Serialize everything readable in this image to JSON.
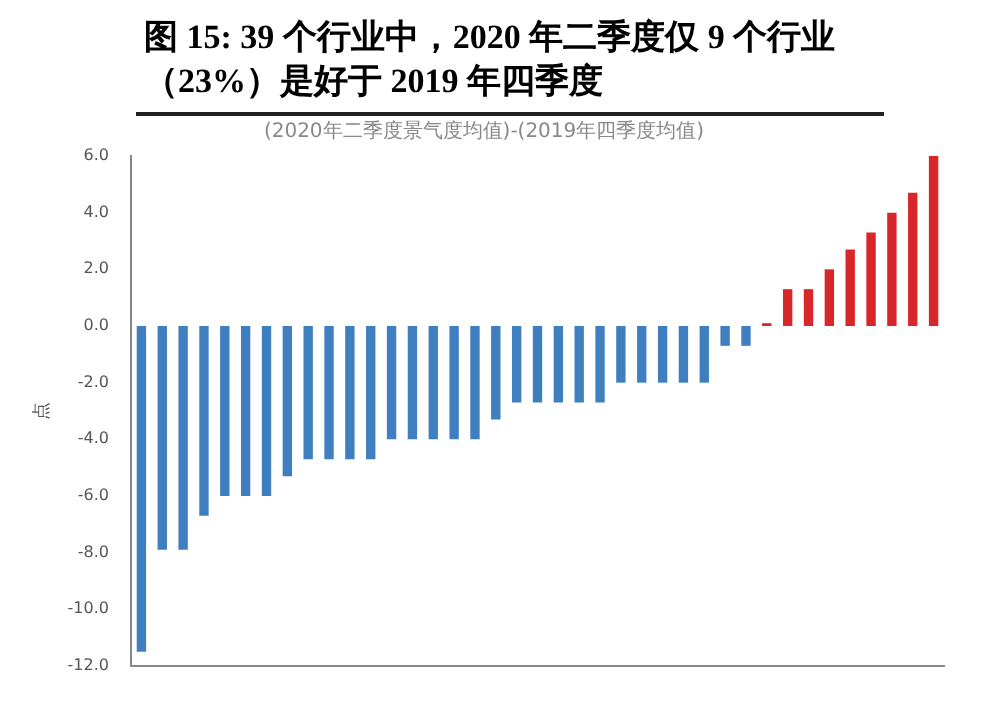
{
  "chart_data": {
    "type": "bar",
    "title": "图 15: 39 个行业中，2020 年二季度仅 9 个行业（23%）是好于 2019 年四季度",
    "subtitle": "(2020年二季度景气度均值)-(2019年四季度均值)",
    "ylabel": "点",
    "categories": [
      null,
      null,
      null,
      null,
      null,
      null,
      null,
      null,
      null,
      null,
      null,
      null,
      null,
      null,
      null,
      null,
      null,
      null,
      null,
      null,
      null,
      null,
      null,
      null,
      null,
      null,
      null,
      null,
      null,
      null,
      null,
      null,
      null,
      null,
      null,
      null,
      null,
      null,
      null
    ],
    "values": [
      -11.5,
      -7.9,
      -7.9,
      -6.7,
      -6.0,
      -6.0,
      -6.0,
      -5.3,
      -4.7,
      -4.7,
      -4.7,
      -4.7,
      -4.0,
      -4.0,
      -4.0,
      -4.0,
      -4.0,
      -3.3,
      -2.7,
      -2.7,
      -2.7,
      -2.7,
      -2.7,
      -2.0,
      -2.0,
      -2.0,
      -2.0,
      -2.0,
      -0.7,
      -0.7,
      0.1,
      1.3,
      1.3,
      2.0,
      2.7,
      3.3,
      4.0,
      4.7,
      6.0
    ],
    "colors": [
      "#3f7fbf",
      "#3f7fbf",
      "#3f7fbf",
      "#3f7fbf",
      "#3f7fbf",
      "#3f7fbf",
      "#3f7fbf",
      "#3f7fbf",
      "#3f7fbf",
      "#3f7fbf",
      "#3f7fbf",
      "#3f7fbf",
      "#3f7fbf",
      "#3f7fbf",
      "#3f7fbf",
      "#3f7fbf",
      "#3f7fbf",
      "#3f7fbf",
      "#3f7fbf",
      "#3f7fbf",
      "#3f7fbf",
      "#3f7fbf",
      "#3f7fbf",
      "#3f7fbf",
      "#3f7fbf",
      "#3f7fbf",
      "#3f7fbf",
      "#3f7fbf",
      "#3f7fbf",
      "#3f7fbf",
      "#d9262b",
      "#d9262b",
      "#d9262b",
      "#d9262b",
      "#d9262b",
      "#d9262b",
      "#d9262b",
      "#d9262b",
      "#d9262b"
    ],
    "ylim": [
      -12,
      6
    ],
    "yticks": [
      {
        "value": -12,
        "label": "-12.0"
      },
      {
        "value": -10,
        "label": "-10.0"
      },
      {
        "value": -8,
        "label": "-8.0"
      },
      {
        "value": -6,
        "label": "-6.0"
      },
      {
        "value": -4,
        "label": "-4.0"
      },
      {
        "value": -2,
        "label": "-2.0"
      },
      {
        "value": 0,
        "label": "0.0"
      },
      {
        "value": 2,
        "label": "2.0"
      },
      {
        "value": 4,
        "label": "4.0"
      },
      {
        "value": 6,
        "label": "6.0"
      }
    ],
    "grid": false,
    "legend": false
  }
}
